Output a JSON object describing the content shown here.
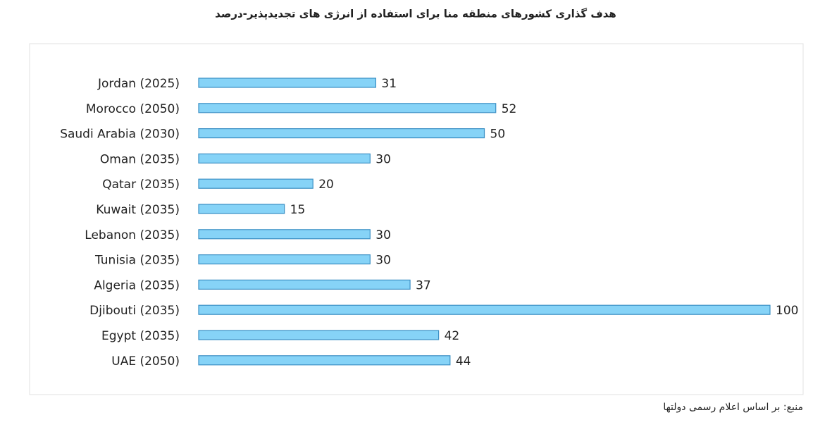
{
  "chart_data": {
    "type": "bar",
    "title": "هدف گذاری کشورهای منطقه منا برای استفاده از انرژی های تجدیدپذیر-درصد",
    "source": "منبع: بر اساس اعلام رسمی دولتها",
    "categories": [
      "Jordan (2025)",
      "Morocco (2050)",
      "Saudi Arabia (2030)",
      "Oman (2035)",
      "Qatar (2035)",
      "Kuwait (2035)",
      "Lebanon (2035)",
      "Tunisia (2035)",
      "Algeria (2035)",
      "Djibouti (2035)",
      "Egypt (2035)",
      "UAE (2050)"
    ],
    "values": [
      31,
      52,
      50,
      30,
      20,
      15,
      30,
      30,
      37,
      100,
      42,
      44
    ],
    "color": "#86d3f7",
    "xlim": [
      0,
      100
    ]
  }
}
